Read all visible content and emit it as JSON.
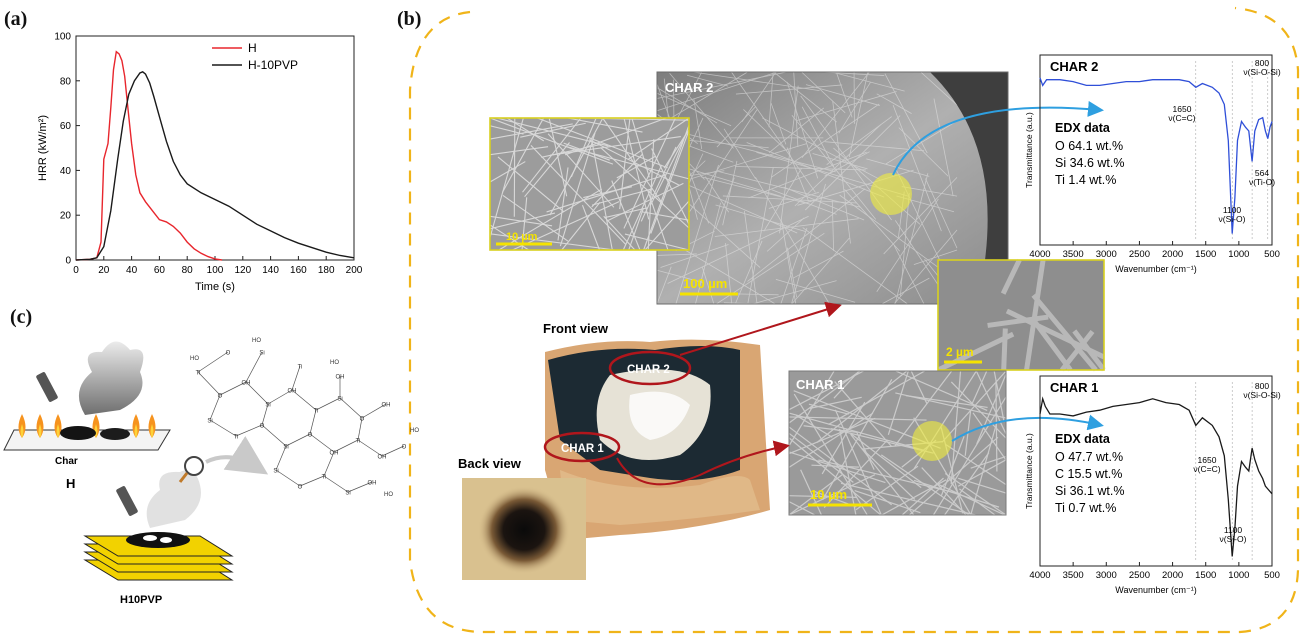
{
  "panels": {
    "a": "(a)",
    "b": "(b)",
    "c": "(c)"
  },
  "chart_data": [
    {
      "type": "line",
      "xlabel": "Time (s)",
      "ylabel": "HRR (kW/m²)",
      "xlim": [
        0,
        200
      ],
      "ylim": [
        0,
        100
      ],
      "xticks": [
        "0",
        "20",
        "40",
        "60",
        "80",
        "100",
        "120",
        "140",
        "160",
        "180",
        "200"
      ],
      "yticks": [
        "0",
        "20",
        "40",
        "60",
        "80",
        "100"
      ],
      "legend_position": "top-right",
      "series": [
        {
          "name": "H",
          "color": "#e8262d",
          "points": [
            [
              0,
              0
            ],
            [
              10,
              0.3
            ],
            [
              15,
              1
            ],
            [
              18,
              8
            ],
            [
              20,
              45
            ],
            [
              23,
              52
            ],
            [
              25,
              68
            ],
            [
              27,
              85
            ],
            [
              29,
              93
            ],
            [
              31,
              92
            ],
            [
              33,
              89
            ],
            [
              35,
              82
            ],
            [
              37,
              70
            ],
            [
              40,
              52
            ],
            [
              43,
              38
            ],
            [
              46,
              30
            ],
            [
              50,
              26
            ],
            [
              55,
              22
            ],
            [
              60,
              18
            ],
            [
              65,
              17
            ],
            [
              70,
              15
            ],
            [
              75,
              12
            ],
            [
              80,
              8
            ],
            [
              85,
              5
            ],
            [
              90,
              3
            ],
            [
              95,
              1.5
            ],
            [
              100,
              0.5
            ],
            [
              105,
              0
            ]
          ]
        },
        {
          "name": "H-10PVP",
          "color": "#1a1a1a",
          "points": [
            [
              0,
              0
            ],
            [
              10,
              0.3
            ],
            [
              15,
              1
            ],
            [
              20,
              6
            ],
            [
              25,
              22
            ],
            [
              30,
              45
            ],
            [
              34,
              62
            ],
            [
              38,
              74
            ],
            [
              42,
              80
            ],
            [
              46,
              83.5
            ],
            [
              48,
              84
            ],
            [
              50,
              83
            ],
            [
              53,
              79
            ],
            [
              56,
              73
            ],
            [
              60,
              64
            ],
            [
              65,
              53
            ],
            [
              70,
              44
            ],
            [
              75,
              38
            ],
            [
              80,
              34
            ],
            [
              90,
              30
            ],
            [
              100,
              27
            ],
            [
              110,
              24
            ],
            [
              120,
              20
            ],
            [
              130,
              16
            ],
            [
              140,
              13
            ],
            [
              150,
              10
            ],
            [
              160,
              7.5
            ],
            [
              170,
              5.5
            ],
            [
              180,
              3.5
            ],
            [
              190,
              2
            ],
            [
              200,
              1
            ]
          ]
        }
      ]
    },
    {
      "type": "line",
      "title": "CHAR 2",
      "xlabel": "Wavenumber (cm⁻¹)",
      "ylabel": "Transmittance (a.u.)",
      "xlim": [
        4000,
        500
      ],
      "xticks": [
        "4000",
        "3500",
        "3000",
        "2500",
        "2000",
        "1500",
        "1000",
        "500"
      ],
      "annotations": [
        {
          "x": 1650,
          "line1": "1650",
          "line2": "ν(C=C)"
        },
        {
          "x": 800,
          "line1": "800",
          "line2": "ν(Si-O-Si)"
        },
        {
          "x": 564,
          "line1": "564",
          "line2": "ν(Ti-O)"
        },
        {
          "x": 1100,
          "line1": "1100",
          "line2": "ν(Si-O)"
        }
      ],
      "edx_title": "EDX data",
      "edx": [
        "O 64.1 wt.%",
        "Si 34.6 wt.%",
        "Ti 1.4 wt.%"
      ],
      "series": [
        {
          "color": "#2f4fd8",
          "points": [
            [
              4000,
              0.88
            ],
            [
              3960,
              0.84
            ],
            [
              3900,
              0.87
            ],
            [
              3700,
              0.87
            ],
            [
              3500,
              0.86
            ],
            [
              3300,
              0.84
            ],
            [
              3100,
              0.84
            ],
            [
              2900,
              0.85
            ],
            [
              2700,
              0.86
            ],
            [
              2500,
              0.86
            ],
            [
              2300,
              0.87
            ],
            [
              2100,
              0.87
            ],
            [
              1900,
              0.87
            ],
            [
              1750,
              0.86
            ],
            [
              1650,
              0.83
            ],
            [
              1550,
              0.85
            ],
            [
              1400,
              0.83
            ],
            [
              1300,
              0.8
            ],
            [
              1220,
              0.74
            ],
            [
              1160,
              0.55
            ],
            [
              1100,
              0.06
            ],
            [
              1060,
              0.25
            ],
            [
              1020,
              0.55
            ],
            [
              960,
              0.65
            ],
            [
              900,
              0.62
            ],
            [
              850,
              0.6
            ],
            [
              800,
              0.44
            ],
            [
              760,
              0.6
            ],
            [
              700,
              0.66
            ],
            [
              640,
              0.67
            ],
            [
              600,
              0.6
            ],
            [
              564,
              0.56
            ],
            [
              530,
              0.62
            ],
            [
              500,
              0.65
            ]
          ]
        }
      ]
    },
    {
      "type": "line",
      "title": "CHAR 1",
      "xlabel": "Wavenumber (cm⁻¹)",
      "ylabel": "Transmittance (a.u.)",
      "xlim": [
        4000,
        500
      ],
      "xticks": [
        "4000",
        "3500",
        "3000",
        "2500",
        "2000",
        "1500",
        "1000",
        "500"
      ],
      "annotations": [
        {
          "x": 1650,
          "line1": "1650",
          "line2": "ν(C=C)"
        },
        {
          "x": 800,
          "line1": "800",
          "line2": "ν(Si-O-Si)"
        },
        {
          "x": 1100,
          "line1": "1100",
          "line2": "ν(Si-O)"
        }
      ],
      "edx_title": "EDX data",
      "edx": [
        "O 47.7 wt.%",
        "C 15.5 wt.%",
        "Si 36.1 wt.%",
        "Ti 0.7 wt.%"
      ],
      "series": [
        {
          "color": "#1a1a1a",
          "points": [
            [
              4000,
              0.8
            ],
            [
              3960,
              0.88
            ],
            [
              3920,
              0.84
            ],
            [
              3850,
              0.8
            ],
            [
              3700,
              0.8
            ],
            [
              3500,
              0.79
            ],
            [
              3300,
              0.81
            ],
            [
              3100,
              0.82
            ],
            [
              2900,
              0.84
            ],
            [
              2700,
              0.85
            ],
            [
              2500,
              0.86
            ],
            [
              2300,
              0.88
            ],
            [
              2100,
              0.86
            ],
            [
              1900,
              0.85
            ],
            [
              1750,
              0.82
            ],
            [
              1650,
              0.74
            ],
            [
              1550,
              0.78
            ],
            [
              1400,
              0.74
            ],
            [
              1300,
              0.68
            ],
            [
              1220,
              0.58
            ],
            [
              1160,
              0.35
            ],
            [
              1100,
              0.05
            ],
            [
              1060,
              0.2
            ],
            [
              1020,
              0.42
            ],
            [
              960,
              0.55
            ],
            [
              900,
              0.52
            ],
            [
              850,
              0.5
            ],
            [
              800,
              0.62
            ],
            [
              760,
              0.56
            ],
            [
              700,
              0.5
            ],
            [
              640,
              0.46
            ],
            [
              600,
              0.42
            ],
            [
              550,
              0.4
            ],
            [
              500,
              0.38
            ]
          ]
        }
      ]
    }
  ],
  "micrographs": {
    "char2": {
      "title": "CHAR 2",
      "scale": "100 µm"
    },
    "inset10": {
      "scale": "10 µm"
    },
    "inset2": {
      "scale": "2 µm"
    },
    "char1": {
      "title": "CHAR 1",
      "scale": "10 µm"
    }
  },
  "photo": {
    "front_view": "Front view",
    "back_view": "Back view",
    "char1_label": "CHAR 1",
    "char2_label": "CHAR 2"
  },
  "schematic": {
    "char_label": "Char",
    "h_label": "H",
    "h10pvp_label": "H10PVP",
    "molecule_labels": [
      "HO",
      "OH",
      "Si",
      "O",
      "Ti"
    ]
  }
}
